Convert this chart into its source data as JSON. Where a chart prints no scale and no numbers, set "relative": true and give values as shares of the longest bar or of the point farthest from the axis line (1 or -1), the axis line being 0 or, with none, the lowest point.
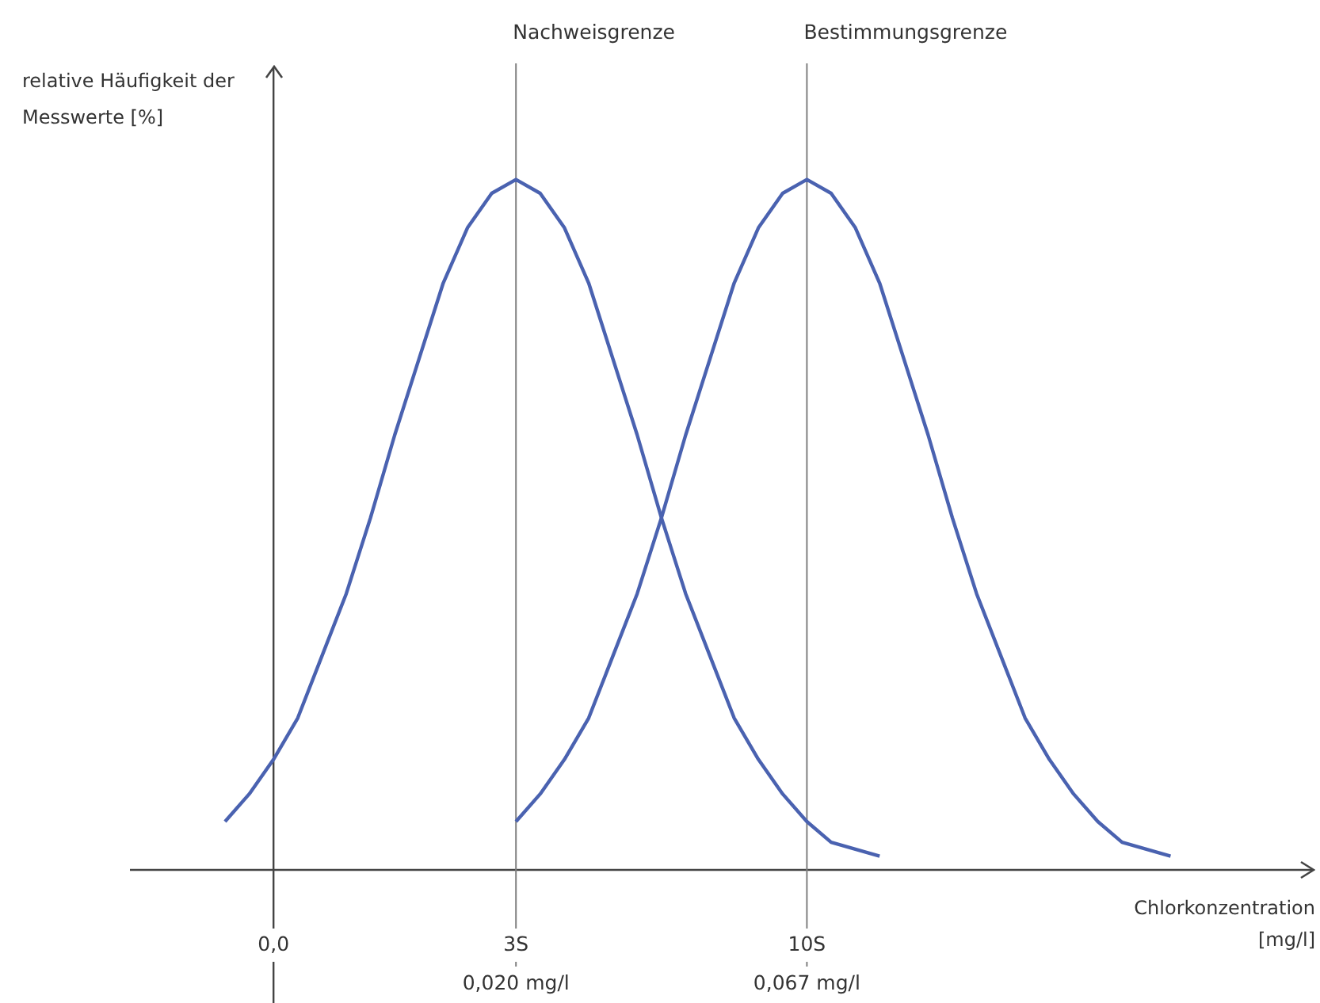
{
  "chart_data": {
    "type": "line",
    "relative": true,
    "xlabel": "Chlorkonzentration [mg/l]",
    "ylabel": "relative Häufigkeit der Messwerte [%]",
    "categories": [
      null,
      null,
      "0,0",
      null,
      null,
      null,
      null,
      null,
      null,
      null,
      null,
      null,
      "3S",
      null,
      null,
      null,
      null,
      null,
      null,
      null,
      null,
      null,
      null,
      null,
      "10S",
      null,
      null,
      null,
      null,
      null,
      null,
      null,
      null,
      null,
      null,
      null,
      null,
      null,
      null,
      null,
      null
    ],
    "ref_lines": [
      {
        "axis": "x",
        "value": "3S",
        "label": "Nachweisgrenze",
        "color": "#808080"
      },
      {
        "axis": "x",
        "value": "10S",
        "label": "Bestimmungsgrenze",
        "color": "#808080"
      }
    ],
    "annotations": [
      "0,020 mg/l",
      "0,067 mg/l"
    ],
    "series": [
      {
        "color": "#4a62b0",
        "values": [
          0.07,
          0.11,
          0.16,
          0.22,
          0.31,
          0.4,
          0.51,
          0.63,
          0.74,
          0.85,
          0.93,
          0.98,
          1,
          0.98,
          0.93,
          0.85,
          0.74,
          0.63,
          0.51,
          0.4,
          0.31,
          0.22,
          0.16,
          0.11,
          0.07,
          0.04,
          0.03,
          0.02,
          null,
          null,
          null,
          null,
          null,
          null,
          null,
          null,
          null,
          null,
          null,
          null,
          null
        ]
      },
      {
        "color": "#4a62b0",
        "values": [
          null,
          null,
          null,
          null,
          null,
          null,
          null,
          null,
          null,
          null,
          null,
          null,
          0.07,
          0.11,
          0.16,
          0.22,
          0.31,
          0.4,
          0.51,
          0.63,
          0.74,
          0.85,
          0.93,
          0.98,
          1,
          0.98,
          0.93,
          0.85,
          0.74,
          0.63,
          0.51,
          0.4,
          0.31,
          0.22,
          0.16,
          0.11,
          0.07,
          0.04,
          0.03,
          0.02,
          null
        ]
      }
    ]
  }
}
